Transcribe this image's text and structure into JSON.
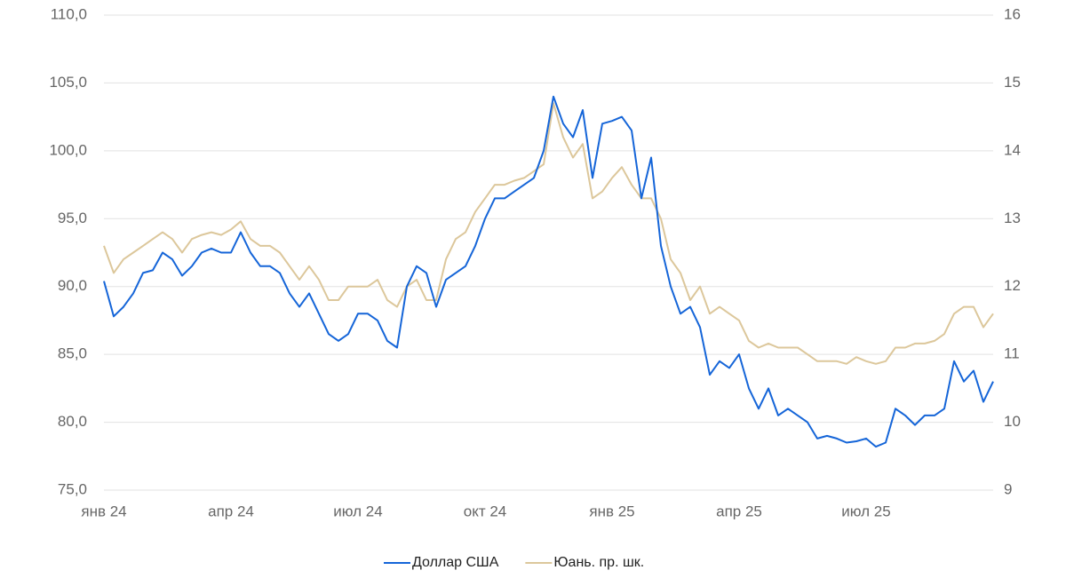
{
  "chart_data": {
    "type": "line",
    "categories": [
      "янв 24",
      null,
      null,
      null,
      null,
      null,
      null,
      null,
      null,
      null,
      null,
      null,
      null,
      "апр 24",
      null,
      null,
      null,
      null,
      null,
      null,
      null,
      null,
      null,
      null,
      null,
      null,
      "июл 24",
      null,
      null,
      null,
      null,
      null,
      null,
      null,
      null,
      null,
      null,
      null,
      null,
      "окт 24",
      null,
      null,
      null,
      null,
      null,
      null,
      null,
      null,
      null,
      null,
      null,
      null,
      "янв 25",
      null,
      null,
      null,
      null,
      null,
      null,
      null,
      null,
      null,
      null,
      null,
      null,
      "апр 25",
      null,
      null,
      null,
      null,
      null,
      null,
      null,
      null,
      null,
      null,
      null,
      null,
      "июл 25",
      null,
      null,
      null,
      null,
      null,
      null,
      null,
      null,
      null,
      null,
      null,
      null,
      null
    ],
    "series": [
      {
        "name": "Доллар США",
        "color": "#1565d8",
        "values": [
          90.4,
          87.8,
          88.5,
          89.5,
          91,
          91.2,
          92.5,
          92,
          90.8,
          91.5,
          92.5,
          92.8,
          92.5,
          92.5,
          94,
          92.5,
          91.5,
          91.5,
          91,
          89.5,
          88.5,
          89.5,
          88,
          86.5,
          86,
          86.5,
          88,
          88,
          87.5,
          86,
          85.5,
          90,
          91.5,
          91,
          88.5,
          90.5,
          91,
          91.5,
          93,
          95,
          96.5,
          96.5,
          97,
          97.5,
          98,
          100,
          104,
          102,
          101,
          103,
          98,
          102,
          102.2,
          102.5,
          101.5,
          96.5,
          99.5,
          93,
          90,
          88,
          88.5,
          87,
          83.5,
          84.5,
          84,
          85,
          82.5,
          81,
          82.5,
          80.5,
          81,
          80.5,
          80,
          78.8,
          79,
          78.8,
          78.5,
          78.6,
          78.8,
          78.2,
          78.5,
          81,
          80.5,
          79.8,
          80.5,
          80.5,
          81,
          84.5,
          83,
          83.8,
          81.5,
          83
        ]
      },
      {
        "name": "Юань. пр. шк.",
        "color": "#dcc79b",
        "axis": "y2",
        "values": [
          12.6,
          12.2,
          12.4,
          12.5,
          12.6,
          12.7,
          12.8,
          12.7,
          12.5,
          12.7,
          12.76,
          12.8,
          12.76,
          12.84,
          12.96,
          12.7,
          12.6,
          12.6,
          12.5,
          12.3,
          12.1,
          12.3,
          12.1,
          11.8,
          11.8,
          12.0,
          12.0,
          12.0,
          12.1,
          11.8,
          11.7,
          12.0,
          12.1,
          11.8,
          11.8,
          12.4,
          12.7,
          12.8,
          13.1,
          13.3,
          13.5,
          13.5,
          13.56,
          13.6,
          13.7,
          13.8,
          14.7,
          14.2,
          13.9,
          14.1,
          13.3,
          13.4,
          13.6,
          13.76,
          13.5,
          13.3,
          13.3,
          13.0,
          12.4,
          12.2,
          11.8,
          12.0,
          11.6,
          11.7,
          11.6,
          11.5,
          11.2,
          11.1,
          11.16,
          11.1,
          11.1,
          11.1,
          11.0,
          10.9,
          10.9,
          10.9,
          10.86,
          10.96,
          10.9,
          10.86,
          10.9,
          11.1,
          11.1,
          11.16,
          11.16,
          11.2,
          11.3,
          11.6,
          11.7,
          11.7,
          11.4,
          11.6
        ]
      }
    ],
    "ylim": [
      75,
      110
    ],
    "yticks": [
      {
        "value": 75,
        "label": "75,0"
      },
      {
        "value": 80,
        "label": "80,0"
      },
      {
        "value": 85,
        "label": "85,0"
      },
      {
        "value": 90,
        "label": "90,0"
      },
      {
        "value": 95,
        "label": "95,0"
      },
      {
        "value": 100,
        "label": "100,0"
      },
      {
        "value": 105,
        "label": "105,0"
      },
      {
        "value": 110,
        "label": "110,0"
      }
    ],
    "y2lim": [
      9,
      16
    ],
    "y2ticks": [
      9,
      10,
      11,
      12,
      13,
      14,
      15,
      16
    ],
    "grid": true,
    "legend": "bottom"
  }
}
